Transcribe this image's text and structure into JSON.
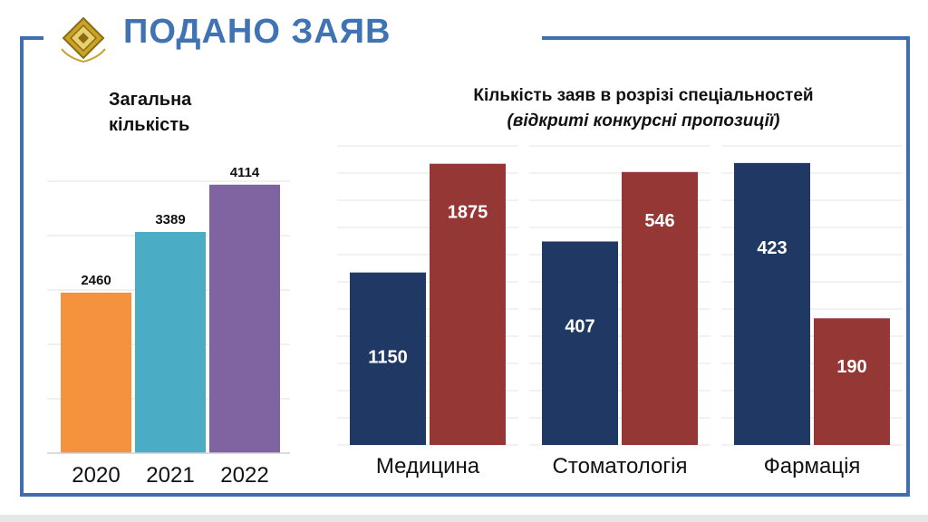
{
  "header": {
    "title": "ПОДАНО ЗАЯВ"
  },
  "colors": {
    "frame": "#3f6fb0",
    "title": "#3f73b4",
    "y2020": "#f5923e",
    "y2021": "#4bacc6",
    "y2022": "#8064a2",
    "navy": "#1f3864",
    "darkred": "#953735"
  },
  "chart_data": [
    {
      "type": "bar",
      "title_lines": [
        "Загальна",
        "кількість"
      ],
      "categories": [
        "2020",
        "2021",
        "2022"
      ],
      "values": [
        2460,
        3389,
        4114
      ],
      "ylim": [
        0,
        5000
      ],
      "grid": true,
      "legend": "none",
      "bar_colors": [
        "#f5923e",
        "#4bacc6",
        "#8064a2"
      ]
    },
    {
      "type": "bar",
      "title": "Кількість заяв в розрізі спеціальностей",
      "subtitle": "(відкриті конкурсні пропозиції)",
      "groups": [
        {
          "category": "Медицина",
          "values": [
            1150,
            1875
          ],
          "ylim": [
            0,
            2000
          ]
        },
        {
          "category": "Стоматологія",
          "values": [
            407,
            546
          ],
          "ylim": [
            0,
            600
          ]
        },
        {
          "category": "Фармація",
          "values": [
            423,
            190
          ],
          "ylim": [
            0,
            450
          ]
        }
      ],
      "series_colors": [
        "#1f3864",
        "#953735"
      ],
      "grid": true,
      "legend": "none"
    }
  ]
}
